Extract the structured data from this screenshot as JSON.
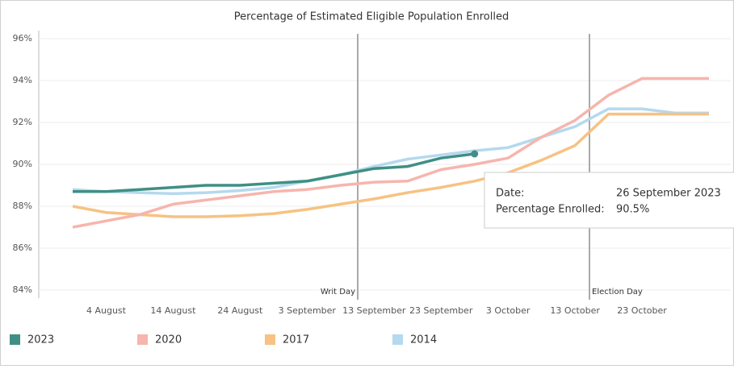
{
  "chart_data": {
    "type": "line",
    "title": "Percentage of Estimated Eligible Population Enrolled",
    "categories": [
      null,
      "4 August",
      null,
      "14 August",
      null,
      "24 August",
      null,
      "3 September",
      null,
      "13 September",
      null,
      "23 September",
      null,
      "3 October",
      null,
      "13 October",
      null,
      "23 October",
      null,
      null
    ],
    "series": [
      {
        "name": "2023",
        "color": "#3f8f84",
        "values": [
          88.7,
          88.7,
          88.8,
          88.9,
          89.0,
          89.0,
          89.1,
          89.2,
          89.5,
          89.8,
          89.9,
          90.3,
          90.5,
          null,
          null,
          null,
          null,
          null,
          null,
          null
        ]
      },
      {
        "name": "2020",
        "color": "#f6b5ad",
        "values": [
          87.0,
          87.3,
          87.6,
          88.1,
          88.3,
          88.5,
          88.7,
          88.8,
          89.0,
          89.15,
          89.2,
          89.75,
          90.0,
          90.3,
          91.3,
          92.1,
          93.3,
          94.1,
          94.1,
          94.1
        ]
      },
      {
        "name": "2017",
        "color": "#f7c283",
        "values": [
          88.0,
          87.7,
          87.6,
          87.5,
          87.5,
          87.55,
          87.65,
          87.85,
          88.1,
          88.35,
          88.65,
          88.9,
          89.2,
          89.6,
          90.2,
          90.9,
          92.4,
          92.4,
          92.4,
          92.4
        ]
      },
      {
        "name": "2014",
        "color": "#b5d9ee",
        "values": [
          88.8,
          88.7,
          88.65,
          88.6,
          88.65,
          88.75,
          88.9,
          89.2,
          89.5,
          89.9,
          90.25,
          90.45,
          90.65,
          90.8,
          91.3,
          91.8,
          92.65,
          92.65,
          92.45,
          92.45
        ]
      }
    ],
    "ylim": [
      84,
      96
    ],
    "yticks": [
      {
        "value": 84,
        "label": "84%"
      },
      {
        "value": 86,
        "label": "86%"
      },
      {
        "value": 88,
        "label": "88%"
      },
      {
        "value": 90,
        "label": "90%"
      },
      {
        "value": 92,
        "label": "92%"
      },
      {
        "value": 94,
        "label": "94%"
      },
      {
        "value": 96,
        "label": "96%"
      }
    ],
    "grid": true,
    "annotations": [
      "Writ Day",
      "Election Day"
    ],
    "tooltip": {
      "date_label": "Date:",
      "date": "26 September 2023",
      "value_label": "Percentage Enrolled:",
      "value": "90.5%"
    }
  }
}
